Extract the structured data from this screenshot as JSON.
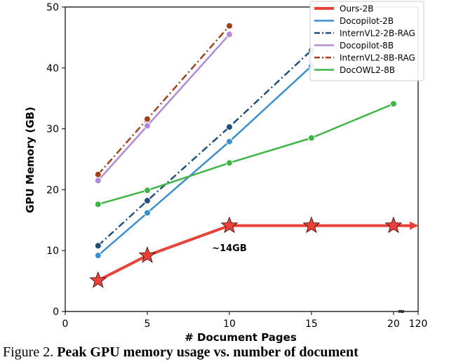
{
  "caption": {
    "label": "Figure 2.",
    "text": "Peak GPU memory usage vs. number of document"
  },
  "chart_data": {
    "type": "line",
    "xlabel": "# Document Pages",
    "ylabel": "GPU Memory (GB)",
    "xlim": [
      0,
      21.5
    ],
    "ylim": [
      0,
      50
    ],
    "xticks": [
      "0",
      "5",
      "10",
      "15",
      "20",
      "120"
    ],
    "yticks": [
      "0",
      "10",
      "20",
      "30",
      "40",
      "50"
    ],
    "x_axis_break": "≈",
    "grid": false,
    "legend_position": "top-right",
    "annotations": [
      {
        "text": "~14GB",
        "x": 10,
        "y": 10.5
      }
    ],
    "series": [
      {
        "name": "Ours-2B",
        "color": "#e8423a",
        "style": "solid",
        "marker": "star",
        "x": [
          2,
          5,
          10,
          15,
          20
        ],
        "values": [
          5.1,
          9.2,
          14.1,
          14.1,
          14.1
        ],
        "arrow": true
      },
      {
        "name": "Docopilot-2B",
        "color": "#3b8fd0",
        "style": "solid",
        "marker": "circle",
        "x": [
          2,
          5,
          10,
          15
        ],
        "values": [
          9.2,
          16.2,
          27.9,
          40.3
        ]
      },
      {
        "name": "InternVL2-2B-RAG",
        "color": "#1f4f7a",
        "style": "dashdot",
        "marker": "circle",
        "x": [
          2,
          5,
          10,
          15
        ],
        "values": [
          10.8,
          18.2,
          30.3,
          42.9
        ]
      },
      {
        "name": "Docopilot-8B",
        "color": "#b38ad6",
        "style": "solid",
        "marker": "circle",
        "x": [
          2,
          5,
          10
        ],
        "values": [
          21.5,
          30.5,
          45.5
        ]
      },
      {
        "name": "InternVL2-8B-RAG",
        "color": "#a2401e",
        "style": "dashdot",
        "marker": "circle",
        "x": [
          2,
          5,
          10
        ],
        "values": [
          22.5,
          31.6,
          46.9
        ]
      },
      {
        "name": "DocOWL2-8B",
        "color": "#3fb548",
        "style": "solid",
        "marker": "circle",
        "x": [
          2,
          5,
          10,
          15,
          20
        ],
        "values": [
          17.6,
          19.9,
          24.4,
          28.5,
          34.1
        ]
      }
    ]
  }
}
